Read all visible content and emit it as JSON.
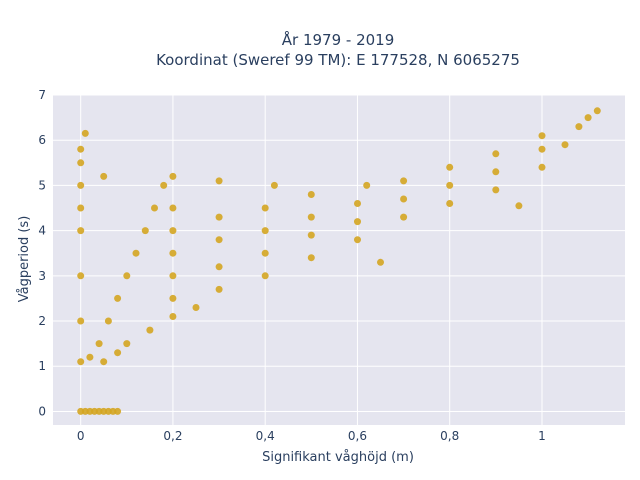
{
  "chart_data": {
    "type": "scatter",
    "title_line1": "År 1979 - 2019",
    "title_line2": "Koordinat (Sweref 99 TM): E 177528, N 6065275",
    "xlabel": "Signifikant våghöjd (m)",
    "ylabel": "Vågperiod (s)",
    "xlim": [
      -0.06,
      1.18
    ],
    "ylim": [
      -0.3,
      7
    ],
    "x_ticks": [
      0,
      0.2,
      0.4,
      0.6,
      0.8,
      1
    ],
    "x_tick_labels": [
      "0",
      "0,2",
      "0,4",
      "0,6",
      "0,8",
      "1"
    ],
    "y_ticks": [
      0,
      1,
      2,
      3,
      4,
      5,
      6,
      7
    ],
    "y_tick_labels": [
      "0",
      "1",
      "2",
      "3",
      "4",
      "5",
      "6",
      "7"
    ],
    "grid": true,
    "colors": {
      "marker": "#d4a521",
      "plot_background": "#e5e5ef",
      "grid": "#ffffff"
    },
    "series": [
      {
        "values": [
          [
            0,
            0
          ],
          [
            0.01,
            0
          ],
          [
            0.02,
            0
          ],
          [
            0.03,
            0
          ],
          [
            0.04,
            0
          ],
          [
            0.05,
            0
          ],
          [
            0.06,
            0
          ],
          [
            0.07,
            0
          ],
          [
            0.08,
            0
          ],
          [
            0,
            1.1
          ],
          [
            0,
            2
          ],
          [
            0,
            3
          ],
          [
            0,
            4
          ],
          [
            0,
            4.5
          ],
          [
            0,
            5
          ],
          [
            0,
            5.5
          ],
          [
            0,
            5.8
          ],
          [
            0.01,
            6.15
          ],
          [
            0.05,
            5.2
          ],
          [
            0.02,
            1.2
          ],
          [
            0.04,
            1.5
          ],
          [
            0.06,
            2
          ],
          [
            0.08,
            2.5
          ],
          [
            0.1,
            3
          ],
          [
            0.12,
            3.5
          ],
          [
            0.14,
            4
          ],
          [
            0.16,
            4.5
          ],
          [
            0.18,
            5
          ],
          [
            0.05,
            1.1
          ],
          [
            0.08,
            1.3
          ],
          [
            0.1,
            1.5
          ],
          [
            0.15,
            1.8
          ],
          [
            0.2,
            2.1
          ],
          [
            0.25,
            2.3
          ],
          [
            0.2,
            2.5
          ],
          [
            0.2,
            3
          ],
          [
            0.2,
            3.5
          ],
          [
            0.2,
            4
          ],
          [
            0.2,
            4.5
          ],
          [
            0.2,
            5.2
          ],
          [
            0.3,
            2.7
          ],
          [
            0.3,
            3.2
          ],
          [
            0.3,
            3.8
          ],
          [
            0.3,
            4.3
          ],
          [
            0.3,
            5.1
          ],
          [
            0.4,
            3
          ],
          [
            0.4,
            3.5
          ],
          [
            0.4,
            4
          ],
          [
            0.4,
            4.5
          ],
          [
            0.42,
            5
          ],
          [
            0.5,
            3.4
          ],
          [
            0.5,
            3.9
          ],
          [
            0.5,
            4.3
          ],
          [
            0.5,
            4.8
          ],
          [
            0.6,
            3.8
          ],
          [
            0.6,
            4.2
          ],
          [
            0.6,
            4.6
          ],
          [
            0.62,
            5
          ],
          [
            0.65,
            3.3
          ],
          [
            0.7,
            4.3
          ],
          [
            0.7,
            4.7
          ],
          [
            0.7,
            5.1
          ],
          [
            0.8,
            4.6
          ],
          [
            0.8,
            5
          ],
          [
            0.8,
            5.4
          ],
          [
            0.9,
            4.9
          ],
          [
            0.9,
            5.3
          ],
          [
            0.9,
            5.7
          ],
          [
            0.95,
            4.55
          ],
          [
            1,
            5.4
          ],
          [
            1,
            5.8
          ],
          [
            1,
            6.1
          ],
          [
            1.05,
            5.9
          ],
          [
            1.08,
            6.3
          ],
          [
            1.1,
            6.5
          ],
          [
            1.12,
            6.65
          ]
        ]
      }
    ]
  }
}
